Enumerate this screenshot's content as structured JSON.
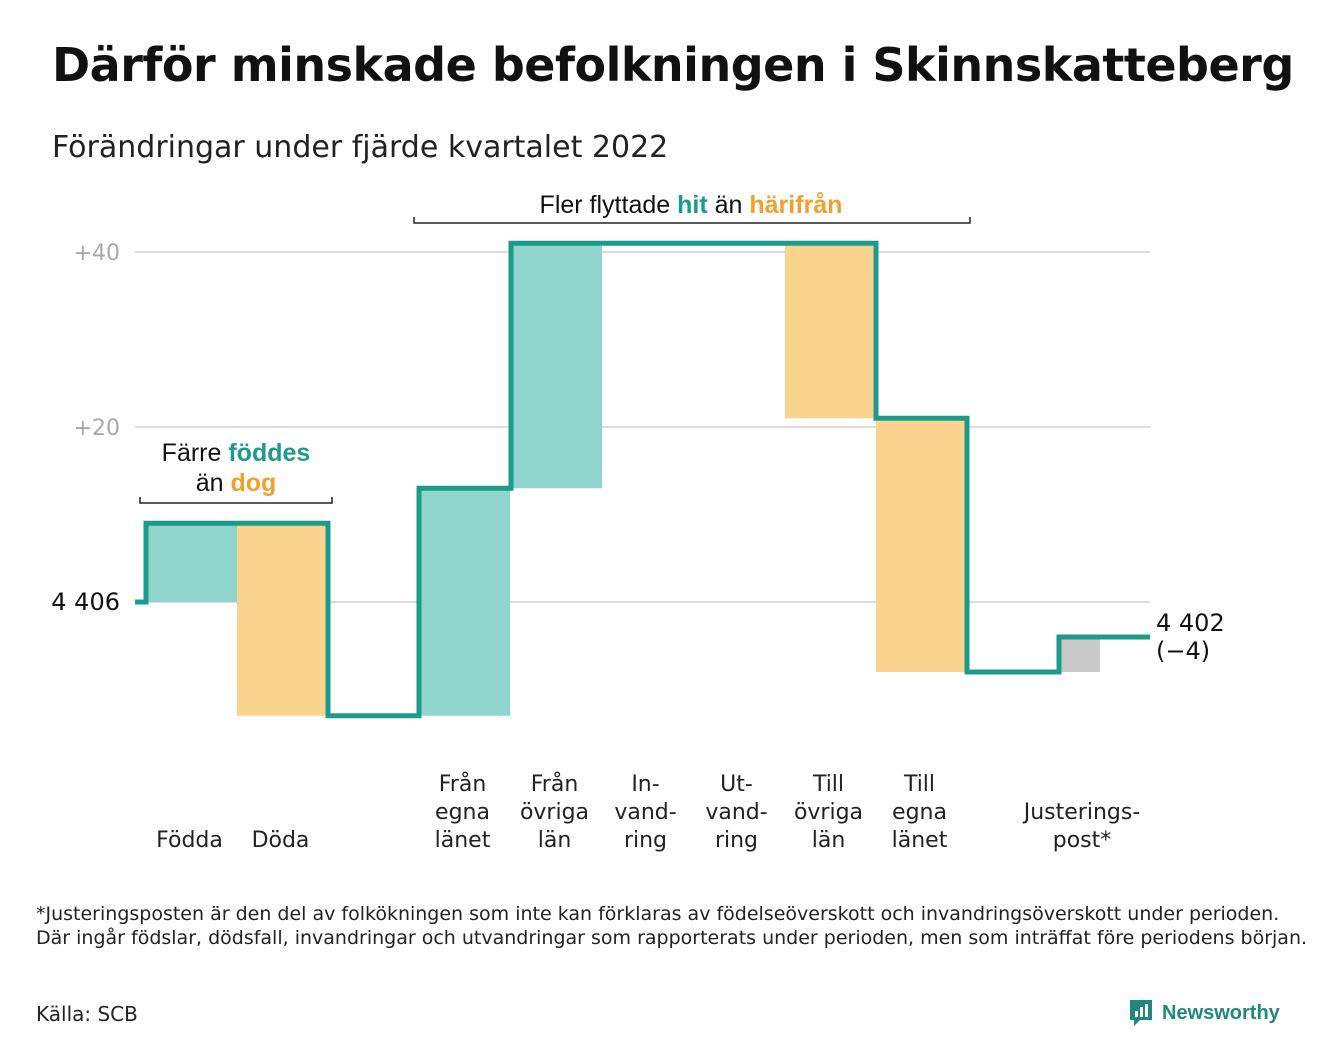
{
  "header": {
    "title": "Därför minskade befolkningen i Skinnskatteberg",
    "subtitle": "Förändringar under fjärde kvartalet 2022"
  },
  "colors": {
    "line": "#1c9a8a",
    "increase": "#8fd5cd",
    "decrease": "#fad48e",
    "adjustment": "#c9c9c9",
    "teal_text": "#1c9a8a",
    "orange_text": "#f0a030",
    "grid": "#dddddd"
  },
  "chart_data": {
    "type": "waterfall",
    "start_value": 4406,
    "start_label": "4 406",
    "end_value": 4402,
    "end_label": "4 402",
    "end_change_label": "(−4)",
    "y_ticks": [
      {
        "offset": 20,
        "label": "+20"
      },
      {
        "offset": 40,
        "label": "+40"
      }
    ],
    "steps": [
      {
        "label": [
          "Födda"
        ],
        "change": 9,
        "kind": "increase"
      },
      {
        "label": [
          "Döda"
        ],
        "change": -22,
        "kind": "decrease"
      },
      {
        "label": [
          "Från",
          "egna",
          "länet"
        ],
        "change": 26,
        "kind": "increase"
      },
      {
        "label": [
          "Från",
          "övriga",
          "län"
        ],
        "change": 28,
        "kind": "increase"
      },
      {
        "label": [
          "In-",
          "vand-",
          "ring"
        ],
        "change": 0,
        "kind": "increase"
      },
      {
        "label": [
          "Ut-",
          "vand-",
          "ring"
        ],
        "change": 0,
        "kind": "decrease"
      },
      {
        "label": [
          "Till",
          "övriga",
          "län"
        ],
        "change": -20,
        "kind": "decrease"
      },
      {
        "label": [
          "Till",
          "egna",
          "länet"
        ],
        "change": -29,
        "kind": "decrease"
      },
      {
        "label": [
          "Justerings-",
          "post*"
        ],
        "change": 4,
        "kind": "adjustment"
      }
    ],
    "annotations": [
      {
        "id": "births",
        "parts": [
          [
            {
              "text": "Färre ",
              "style": "plain"
            },
            {
              "text": "föddes",
              "style": "teal"
            }
          ],
          [
            {
              "text": "än ",
              "style": "plain"
            },
            {
              "text": "dog",
              "style": "orange"
            }
          ]
        ]
      },
      {
        "id": "migration",
        "parts": [
          [
            {
              "text": "Fler flyttade ",
              "style": "plain"
            },
            {
              "text": "hit",
              "style": "teal"
            },
            {
              "text": " än ",
              "style": "plain"
            },
            {
              "text": "härifrån",
              "style": "orange"
            }
          ]
        ]
      }
    ]
  },
  "footnote": "*Justeringsposten är den del av folkökningen som inte kan förklaras av födelseöverskott och invandringsöverskott under perioden. Där ingår födslar, dödsfall, invandringar och utvandringar som rapporterats under perioden, men som inträffat före periodens början.",
  "source": "Källa: SCB",
  "brand": {
    "name": "Newsworthy",
    "icon": "newsworthy-logo-icon"
  }
}
